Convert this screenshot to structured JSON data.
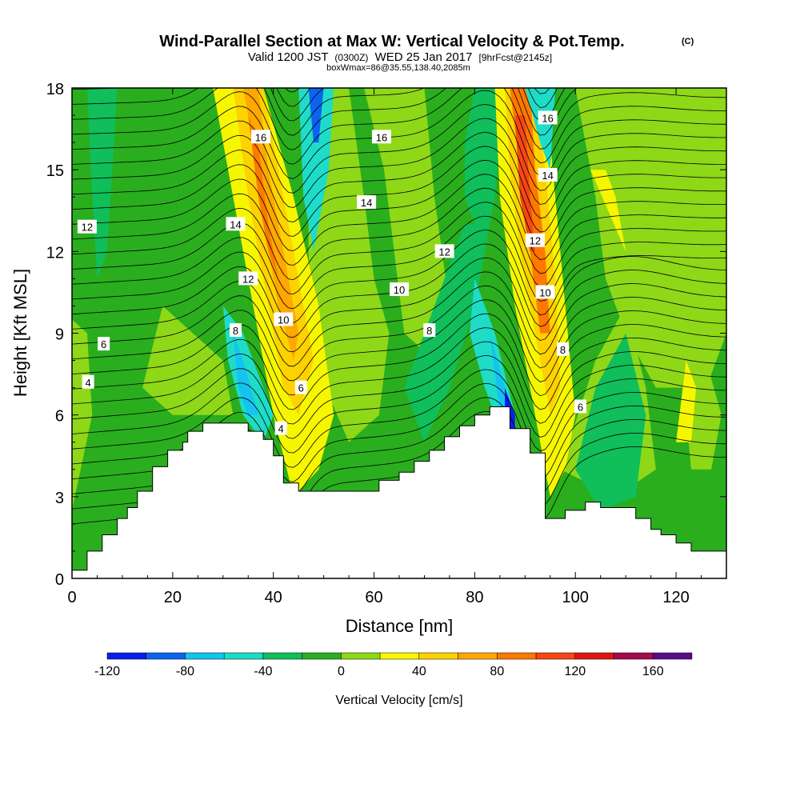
{
  "chart_data": {
    "type": "heatmap",
    "title": "Wind-Parallel Section at Max W: Vertical Velocity & Pot.Temp.",
    "title_mark": "(C)",
    "subtitle_valid": "Valid 1200 JST",
    "subtitle_utc": "(0300Z)",
    "subtitle_date": "WED 25 Jan 2017",
    "subtitle_fcst": "[9hrFcst@2145z]",
    "subtitle_box": "boxWmax=86@35.55,138.40,2085m",
    "xlabel": "Distance [nm]",
    "ylabel": "Height [Kft MSL]",
    "xlim": [
      0,
      130
    ],
    "ylim": [
      0,
      18
    ],
    "x_ticks": [
      "0",
      "20",
      "40",
      "60",
      "80",
      "100",
      "120"
    ],
    "y_ticks": [
      "0",
      "3",
      "6",
      "9",
      "12",
      "15",
      "18"
    ],
    "colorbar": {
      "label": "Vertical Velocity [cm/s]",
      "min": -120,
      "max": 180,
      "step": 20,
      "tick_labels": [
        "-120",
        "-80",
        "-40",
        "0",
        "40",
        "80",
        "120",
        "160"
      ],
      "colors": [
        "#0a1ef0",
        "#0a64f0",
        "#14c3f0",
        "#1edcc8",
        "#10be5a",
        "#2aae1e",
        "#8ed818",
        "#f6f600",
        "#fed200",
        "#fea800",
        "#ff7800",
        "#f54614",
        "#e01414",
        "#a50a4b",
        "#5a0a8c"
      ]
    },
    "terrain": {
      "x": [
        0,
        3,
        3,
        6,
        6,
        9,
        9,
        11,
        11,
        13,
        13,
        16,
        16,
        19,
        19,
        22,
        22,
        23,
        23,
        26,
        26,
        30,
        30,
        35,
        35,
        38,
        38,
        40,
        40,
        42,
        42,
        45,
        45,
        49,
        49,
        61,
        61,
        65,
        65,
        68,
        68,
        71,
        71,
        74,
        74,
        77,
        77,
        80,
        80,
        83,
        83,
        87,
        87,
        91,
        91,
        94,
        94,
        98,
        98,
        102,
        102,
        105,
        105,
        112,
        112,
        115,
        115,
        117,
        117,
        120,
        120,
        123,
        123,
        126,
        126,
        130
      ],
      "y": [
        0.3,
        0.3,
        1.0,
        1.0,
        1.6,
        1.6,
        2.2,
        2.2,
        2.6,
        2.6,
        3.2,
        3.2,
        4.1,
        4.1,
        4.7,
        4.7,
        5.0,
        5.0,
        5.4,
        5.4,
        5.7,
        5.7,
        5.7,
        5.7,
        5.4,
        5.4,
        5.1,
        5.1,
        4.5,
        4.5,
        3.5,
        3.5,
        3.2,
        3.2,
        3.2,
        3.2,
        3.6,
        3.6,
        3.9,
        3.9,
        4.3,
        4.3,
        4.7,
        4.7,
        5.2,
        5.2,
        5.6,
        5.6,
        6.0,
        6.0,
        6.3,
        6.3,
        5.5,
        5.5,
        4.6,
        4.6,
        2.2,
        2.2,
        2.5,
        2.5,
        2.8,
        2.8,
        2.6,
        2.6,
        2.2,
        2.2,
        1.8,
        1.8,
        1.6,
        1.6,
        1.3,
        1.3,
        1.0,
        1.0,
        1.0,
        1.0
      ]
    },
    "contour_labels": [
      {
        "text": "4",
        "x": 3.2,
        "y": 7.2
      },
      {
        "text": "6",
        "x": 6.3,
        "y": 8.6
      },
      {
        "text": "12",
        "x": 3.0,
        "y": 12.9
      },
      {
        "text": "8",
        "x": 32.5,
        "y": 9.1
      },
      {
        "text": "10",
        "x": 42.0,
        "y": 9.5
      },
      {
        "text": "12",
        "x": 35.0,
        "y": 11.0
      },
      {
        "text": "14",
        "x": 32.5,
        "y": 13.0
      },
      {
        "text": "16",
        "x": 37.5,
        "y": 16.2
      },
      {
        "text": "6",
        "x": 45.5,
        "y": 7.0
      },
      {
        "text": "4",
        "x": 41.5,
        "y": 5.5
      },
      {
        "text": "16",
        "x": 61.5,
        "y": 16.2
      },
      {
        "text": "14",
        "x": 58.5,
        "y": 13.8
      },
      {
        "text": "12",
        "x": 74.0,
        "y": 12.0
      },
      {
        "text": "10",
        "x": 65.0,
        "y": 10.6
      },
      {
        "text": "8",
        "x": 71.0,
        "y": 9.1
      },
      {
        "text": "16",
        "x": 94.5,
        "y": 16.9
      },
      {
        "text": "14",
        "x": 94.5,
        "y": 14.8
      },
      {
        "text": "12",
        "x": 92.0,
        "y": 12.4
      },
      {
        "text": "10",
        "x": 94.0,
        "y": 10.5
      },
      {
        "text": "8",
        "x": 97.5,
        "y": 8.4
      },
      {
        "text": "6",
        "x": 101.0,
        "y": 6.3
      }
    ]
  }
}
